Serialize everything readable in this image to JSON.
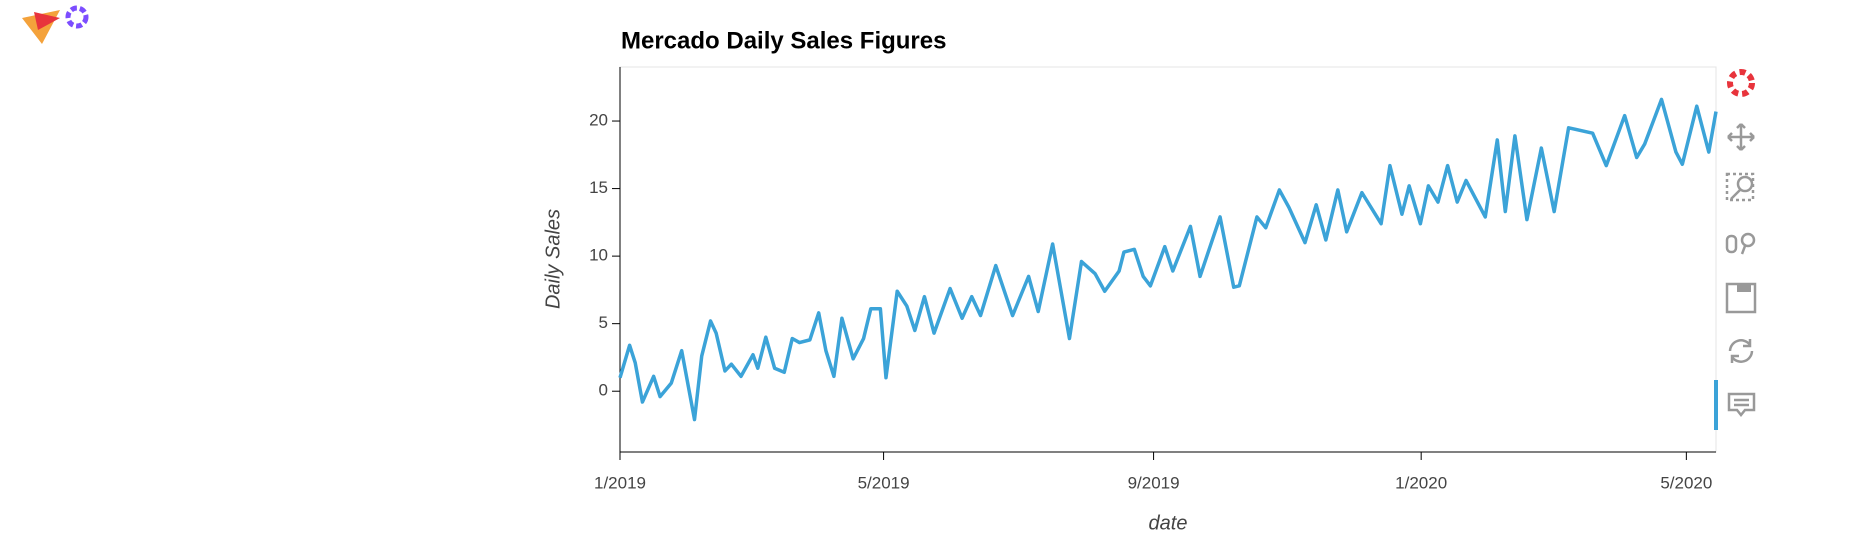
{
  "chart_data": {
    "type": "line",
    "title": "Mercado Daily Sales Figures",
    "x_label": "date",
    "y_label": "Daily Sales",
    "x": [
      2019.0,
      2019.012,
      2019.019,
      2019.028,
      2019.042,
      2019.05,
      2019.064,
      2019.077,
      2019.093,
      2019.102,
      2019.113,
      2019.12,
      2019.131,
      2019.139,
      2019.151,
      2019.166,
      2019.172,
      2019.182,
      2019.193,
      2019.205,
      2019.215,
      2019.224,
      2019.237,
      2019.248,
      2019.257,
      2019.267,
      2019.277,
      2019.291,
      2019.304,
      2019.313,
      2019.325,
      2019.332,
      2019.346,
      2019.358,
      2019.368,
      2019.38,
      2019.392,
      2019.412,
      2019.427,
      2019.439,
      2019.45,
      2019.469,
      2019.49,
      2019.51,
      2019.522,
      2019.54,
      2019.561,
      2019.576,
      2019.593,
      2019.605,
      2019.623,
      2019.629,
      2019.642,
      2019.653,
      2019.662,
      2019.68,
      2019.69,
      2019.712,
      2019.724,
      2019.749,
      2019.766,
      2019.773,
      2019.795,
      2019.806,
      2019.823,
      2019.835,
      2019.855,
      2019.869,
      2019.881,
      2019.896,
      2019.907,
      2019.926,
      2019.95,
      2019.961,
      2019.976,
      2019.985,
      2019.999,
      2020.009,
      2020.021,
      2020.033,
      2020.045,
      2020.056,
      2020.08,
      2020.095,
      2020.105,
      2020.117,
      2020.132,
      2020.15,
      2020.166,
      2020.184,
      2020.214,
      2020.231,
      2020.254,
      2020.269,
      2020.279,
      2020.3,
      2020.318,
      2020.326,
      2020.344,
      2020.359,
      2020.368
    ],
    "series": [
      {
        "color": "#3ba3d8",
        "values": [
          1.0,
          3.4,
          2.1,
          -0.8,
          1.1,
          -0.4,
          0.6,
          3.0,
          -2.1,
          2.6,
          5.2,
          4.3,
          1.5,
          2.0,
          1.1,
          2.7,
          1.7,
          4.0,
          1.7,
          1.4,
          3.9,
          3.6,
          3.8,
          5.8,
          3.0,
          1.1,
          5.4,
          2.4,
          3.9,
          6.1,
          6.1,
          1.0,
          7.4,
          6.3,
          4.5,
          7.0,
          4.3,
          7.6,
          5.4,
          7.0,
          5.6,
          9.3,
          5.6,
          8.5,
          5.9,
          10.9,
          3.9,
          9.6,
          8.7,
          7.4,
          8.9,
          10.3,
          10.5,
          8.5,
          7.8,
          10.7,
          8.9,
          12.2,
          8.5,
          12.9,
          7.7,
          7.8,
          12.9,
          12.1,
          14.9,
          13.6,
          11.0,
          13.8,
          11.2,
          14.9,
          11.8,
          14.7,
          12.4,
          16.7,
          13.1,
          15.2,
          12.4,
          15.2,
          14.0,
          16.7,
          14.0,
          15.6,
          12.9,
          18.6,
          13.3,
          18.9,
          12.7,
          18.0,
          13.3,
          19.5,
          19.1,
          16.7,
          20.4,
          17.3,
          18.3,
          21.6,
          17.7,
          16.8,
          21.1,
          17.7,
          20.7
        ]
      }
    ],
    "xlim": [
      2019,
      2020.368
    ],
    "xticks": [
      {
        "value": 2019,
        "label": "1/2019"
      },
      {
        "value": 2019.329,
        "label": "5/2019"
      },
      {
        "value": 2019.666,
        "label": "9/2019"
      },
      {
        "value": 2020,
        "label": "1/2020"
      },
      {
        "value": 2020.331,
        "label": "5/2020"
      }
    ],
    "ylim": [
      -4.5,
      24
    ],
    "yticks": [
      0,
      5,
      10,
      15,
      20
    ]
  }
}
